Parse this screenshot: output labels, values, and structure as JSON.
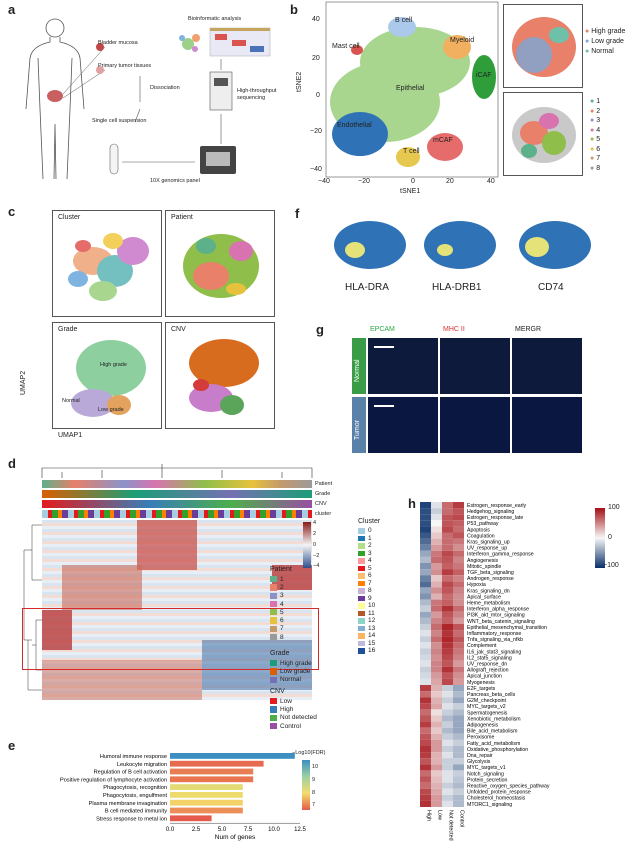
{
  "panels": {
    "a": {
      "letter": "a",
      "labels": {
        "bladder": "Bladder mucosa",
        "primary": "Primary tumor tissues",
        "dissociation": "Dissociation",
        "suspension": "Single cell suspension",
        "genomics": "10X genomics panel",
        "sequencing": "High-throughput\nsequencing",
        "bio": "Bioinformatic analysis"
      }
    },
    "b": {
      "letter": "b",
      "xlabel": "tSNE1",
      "ylabel": "tSNE2",
      "xticks": [
        "−40",
        "−20",
        "0",
        "20",
        "40"
      ],
      "yticks": [
        "40",
        "20",
        "0",
        "−20",
        "−40"
      ],
      "clusters": [
        "B cell",
        "Myeloid",
        "Mast cell",
        "Epithelial",
        "iCAF",
        "Endothelial",
        "mCAF",
        "T cell"
      ],
      "legend1": [
        "High grade",
        "Low grade",
        "Normal"
      ],
      "legend1_colors": [
        "#e8806a",
        "#7aa6d6",
        "#6fc0a8"
      ],
      "legend2": [
        "1",
        "2",
        "3",
        "4",
        "5",
        "6",
        "7",
        "8"
      ],
      "legend2_colors": [
        "#5cb08a",
        "#e8806a",
        "#8a93c8",
        "#d873b0",
        "#8fbe4a",
        "#e6c23c",
        "#c59a6b",
        "#9a9a9a"
      ]
    },
    "c": {
      "letter": "c",
      "titles": [
        "Cluster",
        "Patient",
        "Grade",
        "CNV"
      ],
      "xlabel": "UMAP1",
      "ylabel": "UMAP2",
      "grade_labels": [
        "High grade",
        "Normal",
        "Low grade"
      ]
    },
    "f": {
      "letter": "f",
      "genes": [
        "HLA-DRA",
        "HLA-DRB1",
        "CD74"
      ]
    },
    "g": {
      "letter": "g",
      "stains": [
        "EPCAM",
        "MHC II",
        "MERGR"
      ],
      "rows": [
        "Normal",
        "Tumor"
      ]
    },
    "d": {
      "letter": "d",
      "track_labels": [
        "Patient",
        "Grade",
        "CNV",
        "cluster"
      ],
      "scale": [
        "4",
        "2",
        "0",
        "−2",
        "−4"
      ],
      "cluster_title": "Cluster",
      "clusters": [
        "0",
        "1",
        "2",
        "3",
        "4",
        "5",
        "6",
        "7",
        "8",
        "9",
        "10",
        "11",
        "12",
        "13",
        "14",
        "15",
        "16"
      ],
      "cluster_colors": [
        "#a6cee3",
        "#1f78b4",
        "#b2df8a",
        "#33a02c",
        "#fb9a99",
        "#e31a1c",
        "#fdbf6f",
        "#ff7f00",
        "#cab2d6",
        "#6a3d9a",
        "#ffff99",
        "#b15928",
        "#8dd3c7",
        "#80b1d3",
        "#fdb462",
        "#bebada",
        "#1f4e9a"
      ],
      "patient_title": "Patient",
      "patients": [
        "1",
        "2",
        "3",
        "4",
        "5",
        "6",
        "7",
        "8"
      ],
      "patient_colors": [
        "#5cb08a",
        "#e8806a",
        "#8a93c8",
        "#d873b0",
        "#8fbe4a",
        "#e6c23c",
        "#c59a6b",
        "#9a9a9a"
      ],
      "grade_title": "Grade",
      "grades": [
        "High grade",
        "Low grade",
        "Normal"
      ],
      "grade_colors": [
        "#1b9e77",
        "#d95f02",
        "#7570b3"
      ],
      "cnv_title": "CNV",
      "cnvs": [
        "Low",
        "High",
        "Not detected",
        "Control"
      ],
      "cnv_colors": [
        "#e41a1c",
        "#377eb8",
        "#4daf4a",
        "#984ea3"
      ]
    },
    "e": {
      "letter": "e",
      "legend_title": "−Log10(FDR)",
      "legend_ticks": [
        "10",
        "9",
        "8",
        "7"
      ],
      "xlabel": "Num of genes",
      "xticks": [
        "0.0",
        "2.5",
        "5.0",
        "7.5",
        "10.0",
        "12.5"
      ]
    },
    "h": {
      "letter": "h",
      "scale": [
        "100",
        "0",
        "−100"
      ],
      "columns": [
        "High",
        "Low",
        "Not detected",
        "Control"
      ]
    }
  },
  "chart_data": [
    {
      "type": "bar",
      "title": "",
      "xlabel": "Num of genes",
      "ylabel": "",
      "xlim": [
        0,
        12.5
      ],
      "categories": [
        "Humoral immune response",
        "Leukocyte migration",
        "Regulation of B cell activation",
        "Positive regulation of lymphocyte activation",
        "Phagocytosis, recognition",
        "Phagocytosis, engulfment",
        "Plasma membrane invagination",
        "B cell mediated immunity",
        "Stress response to metal ion"
      ],
      "values": [
        12,
        9,
        8,
        8,
        7,
        7,
        7,
        7,
        4
      ],
      "color_values": [
        11.5,
        7.2,
        7.4,
        7.3,
        8.8,
        8.6,
        8.4,
        7.6,
        7.0
      ],
      "colorbar": "−Log10(FDR)"
    },
    {
      "type": "heatmap",
      "title": "",
      "rows": [
        "Estrogen_response_early",
        "Hedgehog_signaling",
        "Estrogen_response_late",
        "P53_pathway",
        "Apoptosis",
        "Coagulation",
        "Kras_signaling_up",
        "UV_response_up",
        "Interferon_gamma_response",
        "Angiogenesis",
        "Mitotic_spindle",
        "TGF_beta_signaling",
        "Androgen_response",
        "Hypoxia",
        "Kras_signaling_dn",
        "Apical_surface",
        "Heme_metabolism",
        "Interferon_alpha_response",
        "PI3K_akt_mtor_signaling",
        "WNT_beta_catenin_signaling",
        "Epithelial_mesenchymal_transition",
        "Inflammatory_response",
        "Tnfa_signaling_via_nfkb",
        "Complement",
        "IL6_jak_stat3_signaling",
        "IL2_stat5_signaling",
        "UV_response_dn",
        "Allograft_rejection",
        "Apical_junction",
        "Myogenesis",
        "E2F_targets",
        "Pancreas_beta_cells",
        "G2M_checkpoint",
        "MYC_targets_v2",
        "Spermatogenesis",
        "Xenobiotic_metabolism",
        "Adipogenesis",
        "Bile_acid_metabolism",
        "Peroxisome",
        "Fatty_acid_metabolism",
        "Oxidative_phosphorylation",
        "Dna_repair",
        "Glycolysis",
        "MYC_targets_v1",
        "Notch_signaling",
        "Protein_secretion",
        "Reactive_oxygen_species_pathway",
        "Unfolded_protein_response",
        "Cholesterol_homeostasis",
        "MTORC1_signaling"
      ],
      "columns": [
        "High",
        "Low",
        "Not detected",
        "Control"
      ],
      "range": [
        -100,
        100
      ],
      "values": [
        [
          -90,
          -10,
          60,
          80
        ],
        [
          -85,
          -20,
          60,
          70
        ],
        [
          -85,
          -10,
          70,
          75
        ],
        [
          -85,
          0,
          70,
          65
        ],
        [
          -90,
          10,
          75,
          60
        ],
        [
          -80,
          20,
          60,
          70
        ],
        [
          -70,
          30,
          60,
          55
        ],
        [
          -60,
          40,
          60,
          45
        ],
        [
          -40,
          55,
          75,
          60
        ],
        [
          -30,
          60,
          70,
          50
        ],
        [
          -50,
          40,
          65,
          55
        ],
        [
          -40,
          45,
          80,
          65
        ],
        [
          -60,
          20,
          60,
          50
        ],
        [
          -70,
          30,
          75,
          60
        ],
        [
          -40,
          45,
          70,
          50
        ],
        [
          -50,
          30,
          60,
          45
        ],
        [
          -30,
          55,
          65,
          45
        ],
        [
          -20,
          60,
          85,
          60
        ],
        [
          -40,
          40,
          70,
          50
        ],
        [
          -30,
          50,
          65,
          40
        ],
        [
          -20,
          60,
          90,
          70
        ],
        [
          -10,
          50,
          85,
          60
        ],
        [
          -20,
          60,
          90,
          70
        ],
        [
          -10,
          45,
          85,
          60
        ],
        [
          -20,
          50,
          80,
          55
        ],
        [
          -15,
          45,
          75,
          50
        ],
        [
          -10,
          50,
          70,
          40
        ],
        [
          -20,
          50,
          85,
          55
        ],
        [
          -15,
          40,
          70,
          45
        ],
        [
          -10,
          35,
          75,
          40
        ],
        [
          80,
          30,
          -20,
          -40
        ],
        [
          60,
          20,
          -10,
          -30
        ],
        [
          85,
          30,
          -20,
          -40
        ],
        [
          75,
          35,
          -10,
          -20
        ],
        [
          60,
          10,
          -20,
          -30
        ],
        [
          70,
          20,
          -30,
          -40
        ],
        [
          80,
          30,
          -20,
          -40
        ],
        [
          60,
          20,
          -30,
          -40
        ],
        [
          70,
          30,
          -20,
          -30
        ],
        [
          75,
          40,
          -10,
          -20
        ],
        [
          85,
          40,
          -20,
          -30
        ],
        [
          80,
          30,
          -10,
          -30
        ],
        [
          70,
          30,
          -20,
          -20
        ],
        [
          85,
          40,
          -20,
          -40
        ],
        [
          60,
          20,
          -10,
          -20
        ],
        [
          70,
          25,
          -10,
          -25
        ],
        [
          60,
          30,
          -20,
          -30
        ],
        [
          75,
          35,
          -10,
          -20
        ],
        [
          80,
          40,
          -20,
          -30
        ],
        [
          85,
          40,
          -10,
          -30
        ]
      ]
    }
  ]
}
